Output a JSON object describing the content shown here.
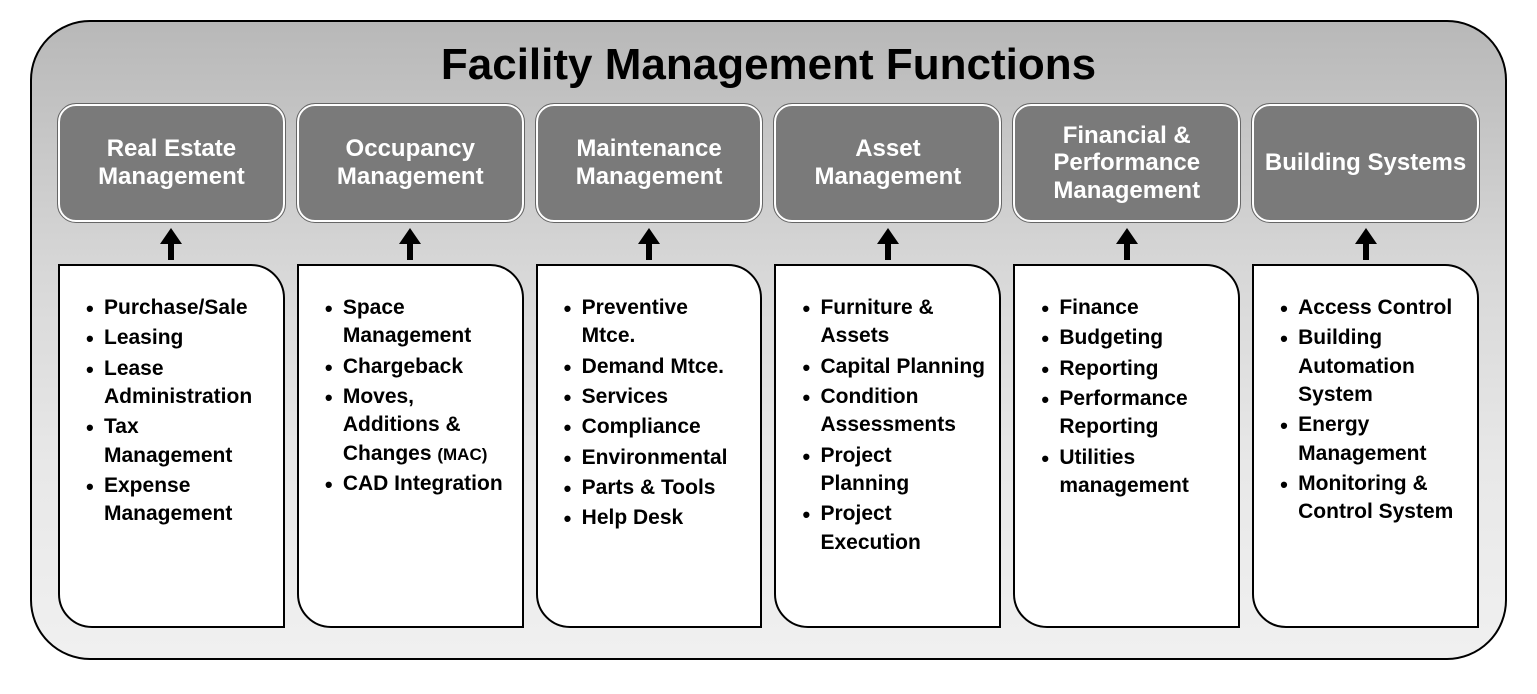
{
  "diagram": {
    "type": "infographic",
    "title": "Facility Management Functions",
    "title_fontsize": 44,
    "background_gradient": [
      "#b8b8b8",
      "#d8d8d8",
      "#e8e8e8",
      "#f0f0f0"
    ],
    "border_color": "#000000",
    "border_radius": 60,
    "header_style": {
      "background_color": "#7a7a7a",
      "text_color": "#ffffff",
      "font_size": 24,
      "font_weight": 700,
      "border_radius": 18,
      "border_color": "#ffffff",
      "outline_color": "#666666"
    },
    "detail_style": {
      "background_color": "#ffffff",
      "text_color": "#000000",
      "font_size": 21,
      "font_weight": 700,
      "border_color": "#000000",
      "border_radius_tr": 34,
      "border_radius_bl": 34
    },
    "arrow_color": "#000000",
    "columns": [
      {
        "header": "Real Estate Management",
        "items": [
          "Purchase/Sale",
          "Leasing",
          "Lease Administration",
          "Tax Management",
          "Expense Management"
        ]
      },
      {
        "header": "Occupancy Management",
        "items": [
          "Space Management",
          "Chargeback",
          "Moves, Additions & Changes <span class=\"sub\">(MAC)</span>",
          "CAD Integration"
        ]
      },
      {
        "header": "Maintenance Management",
        "items": [
          "Preventive Mtce.",
          "Demand  Mtce.",
          "Services",
          "Compliance",
          "Environmental",
          "Parts & Tools",
          "Help Desk"
        ]
      },
      {
        "header": "Asset Management",
        "items": [
          "Furniture & Assets",
          "Capital Planning",
          "Condition Assessments",
          "Project Planning",
          "Project Execution"
        ]
      },
      {
        "header": "Financial & Performance Management",
        "items": [
          "Finance",
          "Budgeting",
          "Reporting",
          "Performance Reporting",
          "Utilities management"
        ]
      },
      {
        "header": "Building Systems",
        "items": [
          "Access Control",
          "Building Automation System",
          "Energy Management",
          "Monitoring & Control System"
        ]
      }
    ]
  }
}
